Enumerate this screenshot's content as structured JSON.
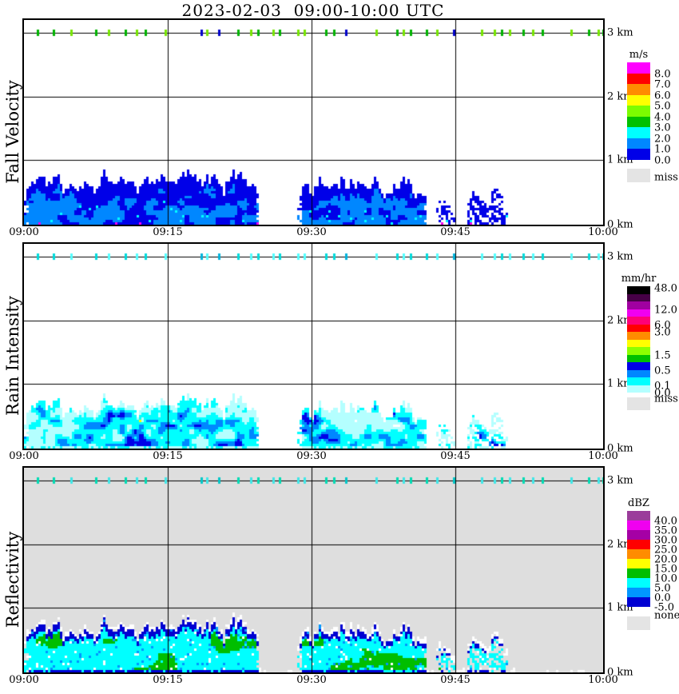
{
  "title": "2023-02-03  09:00-10:00 UTC",
  "axis": {
    "x_ticks": [
      "09:00",
      "09:15",
      "09:30",
      "09:45",
      "10:00"
    ],
    "height_labels": [
      "3 km",
      "2 km",
      "1 km",
      "0 km"
    ]
  },
  "panels": [
    {
      "id": "fall-velocity",
      "ylabel": "Fall Velocity",
      "unit": "m/s",
      "background": "#FFFFFF",
      "legend": {
        "title": "m/s",
        "entries": [
          [
            "#FF00FF",
            "8.0"
          ],
          [
            "#FF0000",
            "7.0"
          ],
          [
            "#FF8C00",
            "6.0"
          ],
          [
            "#FFFF00",
            "5.0"
          ],
          [
            "#7CFC00",
            "4.0"
          ],
          [
            "#00C000",
            "3.0"
          ],
          [
            "#00FFFF",
            "2.0"
          ],
          [
            "#0087FF",
            "1.0"
          ],
          [
            "#0000E8",
            "0.0"
          ]
        ],
        "top_label": "",
        "miss_color": "#E4E4E4",
        "miss_label": "miss"
      },
      "strip_colors": [
        "#00B400",
        "#77E600",
        "#0000CC"
      ]
    },
    {
      "id": "rain-intensity",
      "ylabel": "Rain Intensity",
      "unit": "mm/hr",
      "background": "#FFFFFF",
      "legend": {
        "title": "mm/hr",
        "entries": [
          [
            "#000000",
            ""
          ],
          [
            "#460046",
            ""
          ],
          [
            "#A000A0",
            "12.0"
          ],
          [
            "#F000F0",
            ""
          ],
          [
            "#FF0078",
            "6.0"
          ],
          [
            "#FF0000",
            "3.0"
          ],
          [
            "#FF8C00",
            ""
          ],
          [
            "#FFFF00",
            ""
          ],
          [
            "#8CFF00",
            "1.5"
          ],
          [
            "#00C000",
            ""
          ],
          [
            "#0000E8",
            "0.5"
          ],
          [
            "#0087FF",
            ""
          ],
          [
            "#00FFFF",
            "0.1"
          ],
          [
            "#B4FFFF",
            "0.0"
          ]
        ],
        "top_label": "48.0",
        "miss_color": "#E4E4E4",
        "miss_label": "miss"
      },
      "strip_colors": [
        "#00DCDC",
        "#55FFFF",
        "#00B4DC"
      ]
    },
    {
      "id": "reflectivity",
      "ylabel": "Reflectivity",
      "unit": "dBZ",
      "background": "#DEDEDE",
      "legend": {
        "title": "dBZ",
        "entries": [
          [
            "#9B3C9B",
            "40.0"
          ],
          [
            "#F000F0",
            "35.0"
          ],
          [
            "#A500A5",
            "30.0"
          ],
          [
            "#FF0000",
            "25.0"
          ],
          [
            "#FF8C00",
            "20.0"
          ],
          [
            "#FFFF00",
            "15.0"
          ],
          [
            "#00BE00",
            "10.0"
          ],
          [
            "#00FFFF",
            "5.0"
          ],
          [
            "#0096FF",
            "0.0"
          ],
          [
            "#0000D2",
            "-5.0"
          ]
        ],
        "top_label": "",
        "miss_color": "#E4E4E4",
        "miss_label": "none"
      },
      "strip_colors": [
        "#00DCB4",
        "#40E8E8",
        "#00C8C8"
      ]
    }
  ],
  "chart_data": {
    "type": "heatmap",
    "title": "2023-02-03  09:00-10:00 UTC",
    "x_range": [
      "09:00",
      "10:00"
    ],
    "x_gridlines_min": [
      15,
      30,
      45
    ],
    "y_range_km": [
      0,
      3.2
    ],
    "y_gridlines_km": [
      1,
      2,
      3
    ],
    "panels": [
      "Fall Velocity (m/s)",
      "Rain Intensity (mm/hr)",
      "Reflectivity (dBZ)"
    ],
    "echo_segments": [
      {
        "start_min": 0.0,
        "end_min": 24.4,
        "mean_top_km": 0.66,
        "top_jitter_km": 0.15,
        "density": 1.0
      },
      {
        "start_min": 28.4,
        "end_min": 41.8,
        "mean_top_km": 0.55,
        "top_jitter_km": 0.13,
        "density": 1.0
      },
      {
        "start_min": 42.7,
        "end_min": 44.6,
        "mean_top_km": 0.36,
        "top_jitter_km": 0.1,
        "density": 0.5
      },
      {
        "start_min": 45.9,
        "end_min": 50.2,
        "mean_top_km": 0.44,
        "top_jitter_km": 0.14,
        "density": 0.5
      }
    ],
    "value_summary": {
      "fall_velocity_ms": "echoes below ~0.9 km, mostly 0-2 m/s (dark blue cap over medium blue)",
      "rain_intensity_mmhr": "mostly 0-0.5 mm/hr (pale cyan/cyan with blue cores), isolated green/yellow pixels",
      "reflectivity_dbz": "mostly -5 to 15 dBZ (blue edge, cyan body, green patches) on gray no-data background"
    },
    "strip_marks_3km": [
      [
        1.3,
        0
      ],
      [
        3.0,
        0
      ],
      [
        4.8,
        1
      ],
      [
        7.4,
        0
      ],
      [
        8.7,
        1
      ],
      [
        10.4,
        0
      ],
      [
        11.6,
        1
      ],
      [
        12.5,
        0
      ],
      [
        14.6,
        1
      ],
      [
        18.3,
        2
      ],
      [
        18.9,
        1
      ],
      [
        20.1,
        2
      ],
      [
        22.1,
        0
      ],
      [
        23.4,
        1
      ],
      [
        24.2,
        0
      ],
      [
        25.7,
        1
      ],
      [
        26.4,
        0
      ],
      [
        28.3,
        1
      ],
      [
        29.0,
        1
      ],
      [
        31.2,
        0
      ],
      [
        32.0,
        0
      ],
      [
        33.3,
        2
      ],
      [
        36.4,
        1
      ],
      [
        38.6,
        0
      ],
      [
        39.2,
        1
      ],
      [
        40.0,
        0
      ],
      [
        41.6,
        0
      ],
      [
        42.7,
        1
      ],
      [
        44.4,
        2
      ],
      [
        47.3,
        1
      ],
      [
        48.7,
        1
      ],
      [
        49.4,
        0
      ],
      [
        50.2,
        1
      ],
      [
        51.6,
        0
      ],
      [
        52.6,
        1
      ],
      [
        53.6,
        0
      ],
      [
        56.6,
        1
      ],
      [
        58.4,
        0
      ],
      [
        59.4,
        1
      ],
      [
        59.9,
        0
      ]
    ],
    "palettes": {
      "fall_velocity": {
        "core": "#0087FF",
        "cap": "#0000E8",
        "speck_cyan": "#00FFFF",
        "speck_magenta": "#F000F0"
      },
      "rain_intensity": {
        "pale": "#B4FFFF",
        "cyan": "#00FFFF",
        "mid": "#0087FF",
        "core": "#0000E8",
        "speck_green": "#00C000",
        "speck_yellow": "#FFFF00"
      },
      "reflectivity": {
        "fringe": "#FFFFFF",
        "edge": "#0000D2",
        "body": "#00FFFF",
        "patch_green": "#00BE00",
        "speck_blue": "#0096FF",
        "speck_orange": "#FF8C00"
      }
    }
  }
}
